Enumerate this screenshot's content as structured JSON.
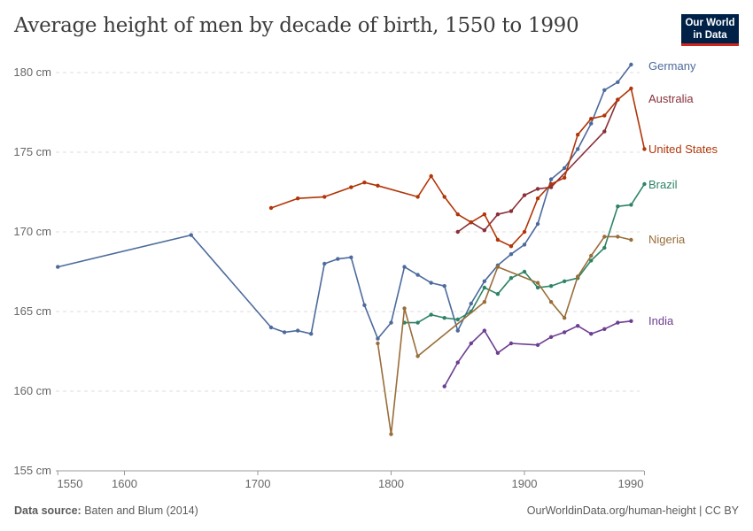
{
  "title": "Average height of men by decade of birth, 1550 to 1990",
  "logo": {
    "line1": "Our World",
    "line2": "in Data"
  },
  "footer": {
    "source_label": "Data source:",
    "source": "Baten and Blum (2014)",
    "url": "OurWorldinData.org/human-height | CC BY"
  },
  "chart_data": {
    "type": "line",
    "title": "Average height of men by decade of birth, 1550 to 1990",
    "xlim": [
      1550,
      1990
    ],
    "ylim": [
      155,
      180.5
    ],
    "x_ticks": [
      1550,
      1600,
      1700,
      1800,
      1900,
      1990
    ],
    "y_ticks": [
      {
        "v": 155,
        "label": "155 cm"
      },
      {
        "v": 160,
        "label": "160 cm"
      },
      {
        "v": 165,
        "label": "165 cm"
      },
      {
        "v": 170,
        "label": "170 cm"
      },
      {
        "v": 175,
        "label": "175 cm"
      },
      {
        "v": 180,
        "label": "180 cm"
      }
    ],
    "grid": "horizontal dashed",
    "legend": "right labels at line ends",
    "series": [
      {
        "name": "Germany",
        "color": "#4C6A9C",
        "points": [
          [
            1550,
            167.8
          ],
          [
            1650,
            169.8
          ],
          [
            1710,
            164.0
          ],
          [
            1720,
            163.7
          ],
          [
            1730,
            163.8
          ],
          [
            1740,
            163.6
          ],
          [
            1750,
            168.0
          ],
          [
            1760,
            168.3
          ],
          [
            1770,
            168.4
          ],
          [
            1780,
            165.4
          ],
          [
            1790,
            163.3
          ],
          [
            1800,
            164.3
          ],
          [
            1810,
            167.8
          ],
          [
            1820,
            167.3
          ],
          [
            1830,
            166.8
          ],
          [
            1840,
            166.6
          ],
          [
            1850,
            163.8
          ],
          [
            1860,
            165.5
          ],
          [
            1870,
            166.9
          ],
          [
            1880,
            167.9
          ],
          [
            1890,
            168.6
          ],
          [
            1900,
            169.2
          ],
          [
            1910,
            170.5
          ],
          [
            1920,
            173.3
          ],
          [
            1930,
            174.0
          ],
          [
            1940,
            175.2
          ],
          [
            1950,
            176.8
          ],
          [
            1960,
            178.9
          ],
          [
            1970,
            179.4
          ],
          [
            1980,
            180.5
          ]
        ]
      },
      {
        "name": "Australia",
        "color": "#883039",
        "points": [
          [
            1850,
            170.0
          ],
          [
            1860,
            170.6
          ],
          [
            1870,
            170.1
          ],
          [
            1880,
            171.1
          ],
          [
            1890,
            171.3
          ],
          [
            1900,
            172.3
          ],
          [
            1910,
            172.7
          ],
          [
            1920,
            172.8
          ],
          [
            1960,
            176.3
          ],
          [
            1970,
            178.3
          ]
        ]
      },
      {
        "name": "United States",
        "color": "#B13507",
        "points": [
          [
            1710,
            171.5
          ],
          [
            1730,
            172.1
          ],
          [
            1750,
            172.2
          ],
          [
            1770,
            172.8
          ],
          [
            1780,
            173.1
          ],
          [
            1790,
            172.9
          ],
          [
            1820,
            172.2
          ],
          [
            1830,
            173.5
          ],
          [
            1840,
            172.2
          ],
          [
            1850,
            171.1
          ],
          [
            1860,
            170.6
          ],
          [
            1870,
            171.1
          ],
          [
            1880,
            169.5
          ],
          [
            1890,
            169.1
          ],
          [
            1900,
            170.0
          ],
          [
            1910,
            172.1
          ],
          [
            1920,
            173.0
          ],
          [
            1930,
            173.4
          ],
          [
            1940,
            176.1
          ],
          [
            1950,
            177.1
          ],
          [
            1960,
            177.3
          ],
          [
            1970,
            178.3
          ],
          [
            1980,
            179.0
          ],
          [
            1990,
            175.2
          ]
        ]
      },
      {
        "name": "Brazil",
        "color": "#2C8465",
        "points": [
          [
            1810,
            164.3
          ],
          [
            1820,
            164.3
          ],
          [
            1830,
            164.8
          ],
          [
            1840,
            164.6
          ],
          [
            1850,
            164.5
          ],
          [
            1860,
            165.0
          ],
          [
            1870,
            166.5
          ],
          [
            1880,
            166.1
          ],
          [
            1890,
            167.1
          ],
          [
            1900,
            167.5
          ],
          [
            1910,
            166.5
          ],
          [
            1920,
            166.6
          ],
          [
            1930,
            166.9
          ],
          [
            1940,
            167.1
          ],
          [
            1950,
            168.2
          ],
          [
            1960,
            169.0
          ],
          [
            1970,
            171.6
          ],
          [
            1980,
            171.7
          ],
          [
            1990,
            173.0
          ]
        ]
      },
      {
        "name": "Nigeria",
        "color": "#996D39",
        "points": [
          [
            1790,
            163.0
          ],
          [
            1800,
            157.3
          ],
          [
            1810,
            165.2
          ],
          [
            1820,
            162.2
          ],
          [
            1870,
            165.6
          ],
          [
            1880,
            167.8
          ],
          [
            1910,
            166.8
          ],
          [
            1920,
            165.6
          ],
          [
            1930,
            164.6
          ],
          [
            1940,
            167.2
          ],
          [
            1950,
            168.5
          ],
          [
            1960,
            169.7
          ],
          [
            1970,
            169.7
          ],
          [
            1980,
            169.5
          ]
        ]
      },
      {
        "name": "India",
        "color": "#6D3E91",
        "points": [
          [
            1840,
            160.3
          ],
          [
            1850,
            161.8
          ],
          [
            1860,
            163.0
          ],
          [
            1870,
            163.8
          ],
          [
            1880,
            162.4
          ],
          [
            1890,
            163.0
          ],
          [
            1910,
            162.9
          ],
          [
            1920,
            163.4
          ],
          [
            1930,
            163.7
          ],
          [
            1940,
            164.1
          ],
          [
            1950,
            163.6
          ],
          [
            1960,
            163.9
          ],
          [
            1970,
            164.3
          ],
          [
            1980,
            164.4
          ]
        ]
      }
    ]
  }
}
